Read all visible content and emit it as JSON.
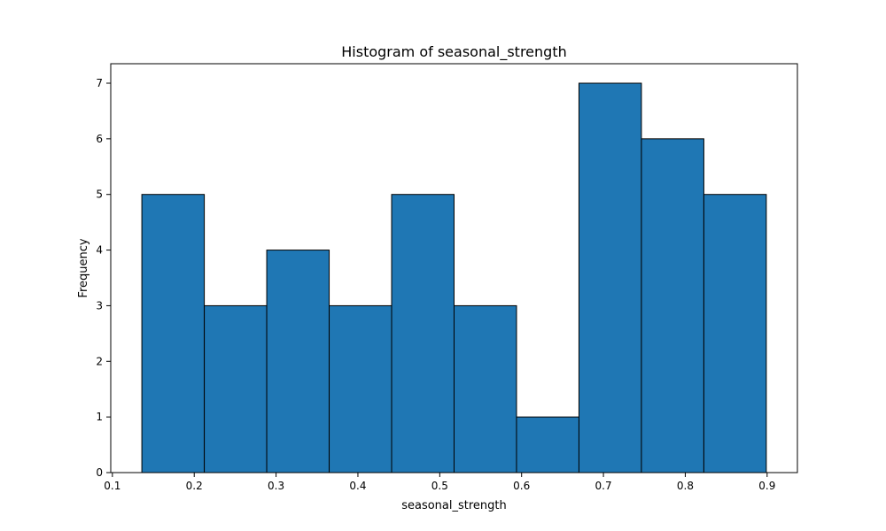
{
  "chart_data": {
    "type": "bar",
    "histogram": true,
    "title": "Histogram of seasonal_strength",
    "xlabel": "seasonal_strength",
    "ylabel": "Frequency",
    "bin_edges": [
      0.136,
      0.2123,
      0.2886,
      0.3649,
      0.4412,
      0.5175,
      0.5938,
      0.6701,
      0.7464,
      0.8227,
      0.899
    ],
    "values": [
      5,
      3,
      4,
      3,
      5,
      3,
      1,
      7,
      6,
      5
    ],
    "xlim": [
      0.098,
      0.937
    ],
    "ylim": [
      0,
      7.35
    ],
    "xticks": [
      0.1,
      0.2,
      0.3,
      0.4,
      0.5,
      0.6,
      0.7,
      0.8,
      0.9
    ],
    "xtick_labels": [
      "0.1",
      "0.2",
      "0.3",
      "0.4",
      "0.5",
      "0.6",
      "0.7",
      "0.8",
      "0.9"
    ],
    "yticks": [
      0,
      1,
      2,
      3,
      4,
      5,
      6,
      7
    ],
    "ytick_labels": [
      "0",
      "1",
      "2",
      "3",
      "4",
      "5",
      "6",
      "7"
    ],
    "grid": false,
    "bar_color": "#1f77b4",
    "edge_color": "#000000"
  }
}
